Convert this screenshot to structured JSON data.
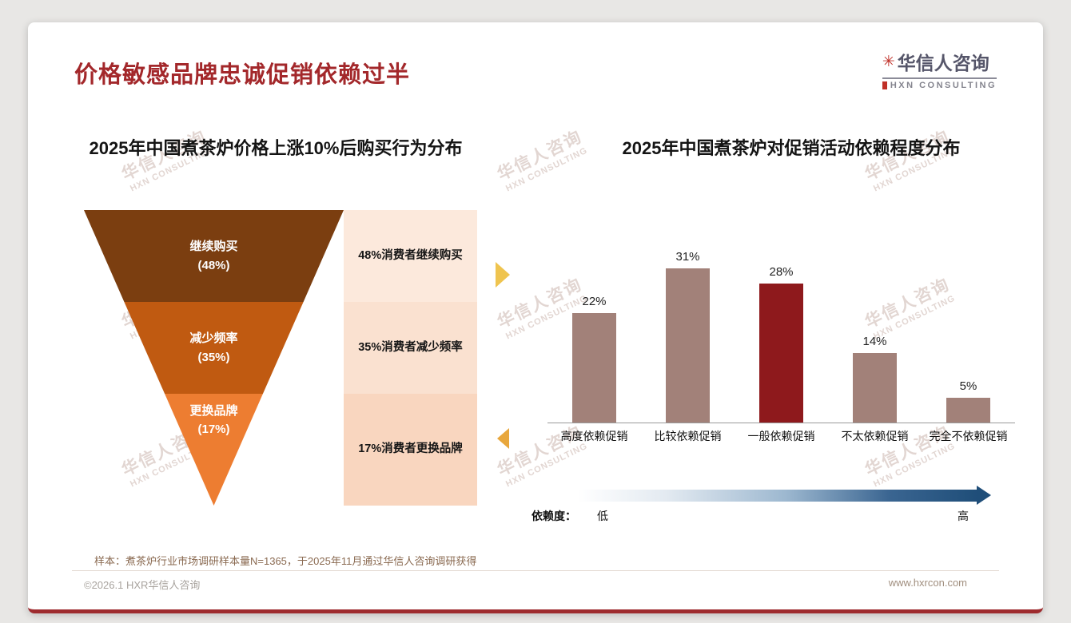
{
  "page_title": "价格敏感品牌忠诚促销依赖过半",
  "logo": {
    "name_cn": "华信人咨询",
    "name_en": "HXN CONSULTING"
  },
  "watermark": {
    "line1": "华信人咨询",
    "line2": "HXN CONSULTING"
  },
  "chart_data": [
    {
      "type": "funnel",
      "title": "2025年中国煮茶炉价格上涨10%后购买行为分布",
      "stages": [
        {
          "label": "继续购买",
          "value_label": "(48%)",
          "value": 48,
          "desc": "48%消费者继续购买",
          "color": "#7B3E10",
          "panel_color": "#FCE9DC"
        },
        {
          "label": "减少频率",
          "value_label": "(35%)",
          "value": 35,
          "desc": "35%消费者减少频率",
          "color": "#C05A11",
          "panel_color": "#FAE1D0"
        },
        {
          "label": "更换品牌",
          "value_label": "(17%)",
          "value": 17,
          "desc": "17%消费者更换品牌",
          "color": "#ED7D31",
          "panel_color": "#F9D6BF"
        }
      ]
    },
    {
      "type": "bar",
      "title": "2025年中国煮茶炉对促销活动依赖程度分布",
      "categories": [
        "高度依赖促销",
        "比较依赖促销",
        "一般依赖促销",
        "不太依赖促销",
        "完全不依赖促销"
      ],
      "values": [
        22,
        31,
        28,
        14,
        5
      ],
      "value_labels": [
        "22%",
        "31%",
        "28%",
        "14%",
        "5%"
      ],
      "ylim": [
        0,
        33
      ],
      "bar_color": "#A28179",
      "highlight_index": 2,
      "highlight_color": "#8E191C",
      "axis_legend": {
        "label": "依赖度：",
        "low": "低",
        "high": "高"
      }
    }
  ],
  "footnote": "样本：煮茶炉行业市场调研样本量N=1365，于2025年11月通过华信人咨询调研获得",
  "footer": {
    "left": "©2026.1 HXR华信人咨询",
    "right": "www.hxrcon.com"
  }
}
